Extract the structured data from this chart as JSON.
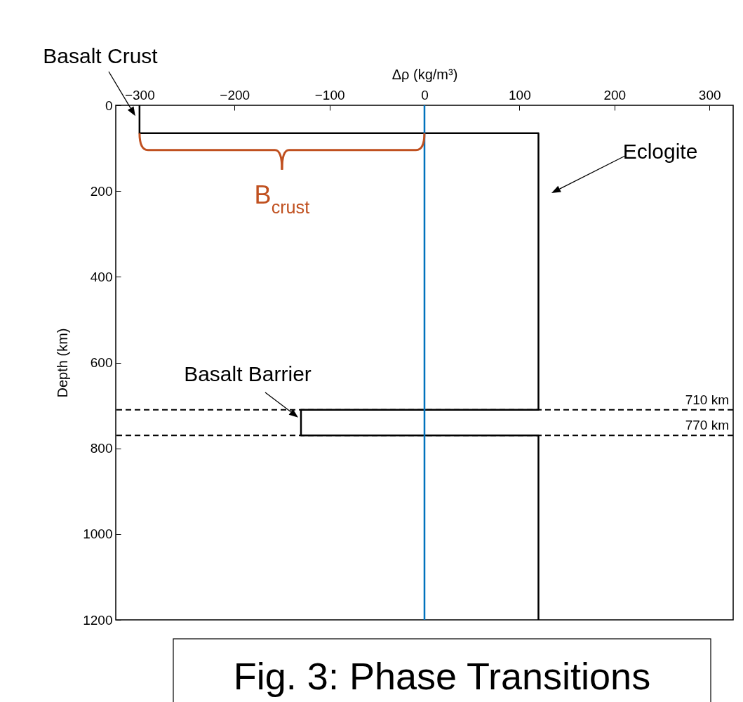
{
  "chart_data": {
    "type": "line",
    "xlabel": "Δρ (kg/m³)",
    "ylabel": "Depth (km)",
    "xlim": [
      -325,
      325
    ],
    "xticks": [
      -300,
      -200,
      -100,
      0,
      100,
      200,
      300
    ],
    "ylim": [
      1200,
      0
    ],
    "yticks": [
      0,
      200,
      400,
      600,
      800,
      1000,
      1200
    ],
    "grid": false,
    "series": [
      {
        "color": "#000000",
        "x": [
          -300,
          -300,
          120,
          120,
          -130,
          -130,
          120,
          120
        ],
        "values": [
          0,
          65,
          65,
          710,
          710,
          770,
          770,
          1200
        ]
      }
    ],
    "ref_lines": [
      {
        "axis": "x",
        "value": 0,
        "color": "#0072bd"
      },
      {
        "axis": "y",
        "value": 710,
        "label": "710 km",
        "color": "#000000",
        "line_style": "dashed"
      },
      {
        "axis": "y",
        "value": 770,
        "label": "770 km",
        "color": "#000000",
        "line_style": "dashed"
      }
    ],
    "annotations": [
      {
        "text": "Basalt Crust",
        "x": -300,
        "y": 25
      },
      "Eclogite",
      {
        "text": "Basalt Barrier",
        "x": -130,
        "y": 728
      },
      {
        "text": "B$_{crust}$",
        "x": -150,
        "y": 65
      },
      "Fig. 3: Phase Transitions"
    ]
  }
}
